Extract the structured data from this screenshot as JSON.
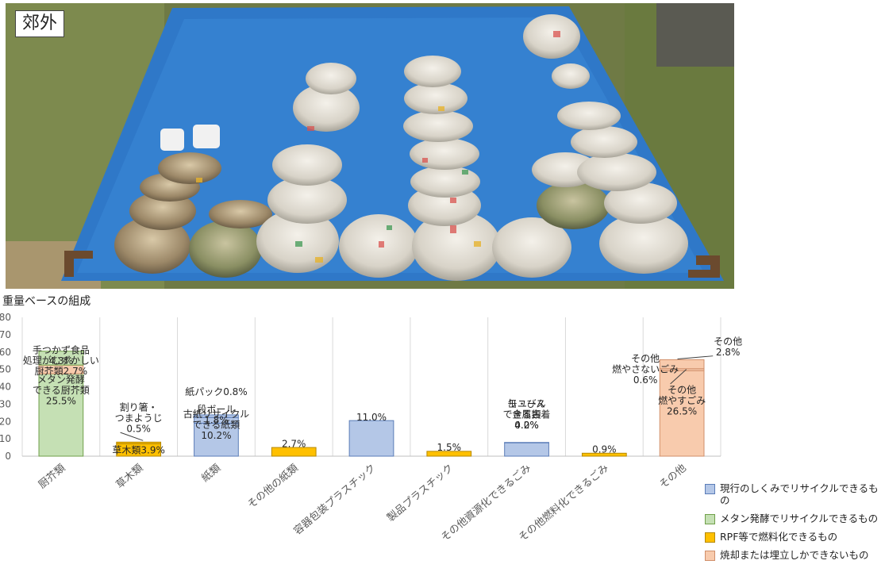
{
  "photo": {
    "label": "郊外",
    "description_icon": "photo-of-waste-bags-on-blue-tarp"
  },
  "chart_data": {
    "type": "bar",
    "title": "重量ベースの組成",
    "ylim": [
      0,
      80
    ],
    "yticks": [
      0,
      10,
      20,
      30,
      40,
      50,
      60,
      70,
      80
    ],
    "grid": "vertical",
    "legend_position": "bottom-right",
    "categories": [
      "厨芥類",
      "草木類",
      "紙類",
      "その他の紙類",
      "容器包装プラスチック",
      "製品プラスチック",
      "その他資源化できるごみ",
      "その他燃料化できるごみ",
      "その他"
    ],
    "legend": [
      {
        "name": "現行のしくみでリサイクルできるもの",
        "color": "#b4c7e7",
        "border": "#5b7db8"
      },
      {
        "name": "メタン発酵でリサイクルできるもの",
        "color": "#c5e0b4",
        "border": "#70a04a"
      },
      {
        "name": "RPF等で燃料化できるもの",
        "color": "#ffc000",
        "border": "#b58800"
      },
      {
        "name": "焼却または埋立しかできないもの",
        "color": "#f8cbad",
        "border": "#d08f6a"
      }
    ],
    "stacks": [
      {
        "category": "厨芥類",
        "segments": [
          {
            "label": "メタン発酵できる厨芥類 25.5%",
            "value": 47.5,
            "color": "#c5e0b4",
            "border": "#70a04a"
          },
          {
            "label": "処理がむずかしい厨芥類2.7%",
            "value": 5.0,
            "color": "#f8cbad",
            "border": "#d08f6a"
          },
          {
            "label": "手つかず食品 4.3%",
            "value": 8.0,
            "color": "#c5e0b4",
            "border": "#70a04a"
          }
        ]
      },
      {
        "category": "草木類",
        "segments": [
          {
            "label": "草木類3.9%",
            "value": 7.2,
            "color": "#ffc000",
            "border": "#b58800"
          },
          {
            "label": "割り箸・つまようじ 0.5%",
            "value": 0.9,
            "color": "#ffc000",
            "border": "#b58800"
          }
        ]
      },
      {
        "category": "紙類",
        "segments": [
          {
            "label": "古紙リサイクルできる紙類 10.2%",
            "value": 19.0,
            "color": "#b4c7e7",
            "border": "#5b7db8"
          },
          {
            "label": "段ボール 1.8%",
            "value": 3.3,
            "color": "#b4c7e7",
            "border": "#5b7db8"
          },
          {
            "label": "紙パック0.8%",
            "value": 1.5,
            "color": "#b4c7e7",
            "border": "#5b7db8"
          }
        ]
      },
      {
        "category": "その他の紙類",
        "segments": [
          {
            "label": "2.7%",
            "value": 5.0,
            "color": "#ffc000",
            "border": "#b58800"
          }
        ]
      },
      {
        "category": "容器包装プラスチック",
        "segments": [
          {
            "label": "11.0%",
            "value": 20.5,
            "color": "#b4c7e7",
            "border": "#5b7db8"
          }
        ]
      },
      {
        "category": "製品プラスチック",
        "segments": [
          {
            "label": "1.5%",
            "value": 2.8,
            "color": "#ffc000",
            "border": "#b58800"
          }
        ]
      },
      {
        "category": "その他資源化できるごみ",
        "segments": [
          {
            "label": "リユースできる古着 4.2%",
            "value": 7.8,
            "color": "#b4c7e7",
            "border": "#5b7db8"
          },
          {
            "label": "缶・びん金属類 0.0%",
            "value": 0.1,
            "color": "#b4c7e7",
            "border": "#5b7db8"
          }
        ]
      },
      {
        "category": "その他燃料化できるごみ",
        "segments": [
          {
            "label": "0.9%",
            "value": 1.7,
            "color": "#ffc000",
            "border": "#b58800"
          }
        ]
      },
      {
        "category": "その他",
        "segments": [
          {
            "label": "その他燃やすごみ 26.5%",
            "value": 49.3,
            "color": "#f8cbad",
            "border": "#d08f6a"
          },
          {
            "label": "その他燃やさないごみ 0.6%",
            "value": 1.1,
            "color": "#f8cbad",
            "border": "#d08f6a"
          },
          {
            "label": "その他 2.8%",
            "value": 5.2,
            "color": "#f8cbad",
            "border": "#d08f6a"
          }
        ]
      }
    ],
    "annotations": [
      {
        "bar": 0,
        "lines": [
          "手つかず食品",
          "4.3%"
        ],
        "x": 78,
        "y": 0,
        "valueAt": 58,
        "anchor": "middle"
      },
      {
        "bar": 0,
        "lines": [
          "処理がむずかしい",
          "厨芥類2.7%"
        ],
        "x": 0,
        "y": 0,
        "valueAt": 52,
        "anchor": "start",
        "leader": true
      },
      {
        "bar": 0,
        "lines": [
          "メタン発酵",
          "できる厨芥類",
          "25.5%"
        ],
        "x": 0,
        "y": 0,
        "valueAt": 38,
        "anchor": "middle"
      },
      {
        "bar": 1,
        "lines": [
          "割り箸・",
          "つまようじ",
          "0.5%"
        ],
        "x": 0,
        "y": 0,
        "valueAt": 22,
        "anchor": "middle",
        "leader": true
      },
      {
        "bar": 1,
        "lines": [
          "草木類3.9%"
        ],
        "x": 0,
        "y": 0,
        "valueAt": 3.5,
        "anchor": "middle"
      },
      {
        "bar": 2,
        "lines": [
          "紙パック0.8%"
        ],
        "x": 0,
        "y": 0,
        "valueAt": 37,
        "anchor": "middle"
      },
      {
        "bar": 2,
        "lines": [
          "段ボール",
          "1.8%"
        ],
        "x": 0,
        "y": 0,
        "valueAt": 24,
        "anchor": "middle",
        "leader": true
      },
      {
        "bar": 2,
        "lines": [
          "古紙リサイクル",
          "できる紙類",
          "10.2%"
        ],
        "x": 0,
        "y": 0,
        "valueAt": 18,
        "anchor": "middle"
      },
      {
        "bar": 3,
        "lines": [
          "2.7%"
        ],
        "x": 0,
        "y": 0,
        "valueAt": 7,
        "anchor": "middle"
      },
      {
        "bar": 4,
        "lines": [
          "11.0%"
        ],
        "x": 0,
        "y": 0,
        "valueAt": 22.5,
        "anchor": "middle"
      },
      {
        "bar": 5,
        "lines": [
          "1.5%"
        ],
        "x": 0,
        "y": 0,
        "valueAt": 5,
        "anchor": "middle"
      },
      {
        "bar": 6,
        "lines": [
          "リユース",
          "できる古着",
          "4.2%"
        ],
        "x": 0,
        "y": 0,
        "valueAt": 24,
        "anchor": "middle"
      },
      {
        "bar": 6,
        "lines": [
          "缶・びん",
          "金属類",
          "0.0%"
        ],
        "x": 0,
        "y": 0,
        "valueAt": 24,
        "anchor": "middle",
        "leader": true
      },
      {
        "bar": 7,
        "lines": [
          "0.9%"
        ],
        "x": 0,
        "y": 0,
        "valueAt": 4,
        "anchor": "middle"
      },
      {
        "bar": 8,
        "lines": [
          "その他",
          "燃やさないごみ",
          "0.6%"
        ],
        "x": 0,
        "y": 0,
        "valueAt": 50,
        "anchor": "middle",
        "leader": true
      },
      {
        "bar": 8,
        "lines": [
          "その他",
          "2.8%"
        ],
        "x": 0,
        "y": 0,
        "valueAt": 63,
        "anchor": "middle",
        "leader": true
      },
      {
        "bar": 8,
        "lines": [
          "その他",
          "燃やすごみ",
          "26.5%"
        ],
        "x": 0,
        "y": 0,
        "valueAt": 32,
        "anchor": "middle"
      }
    ]
  }
}
